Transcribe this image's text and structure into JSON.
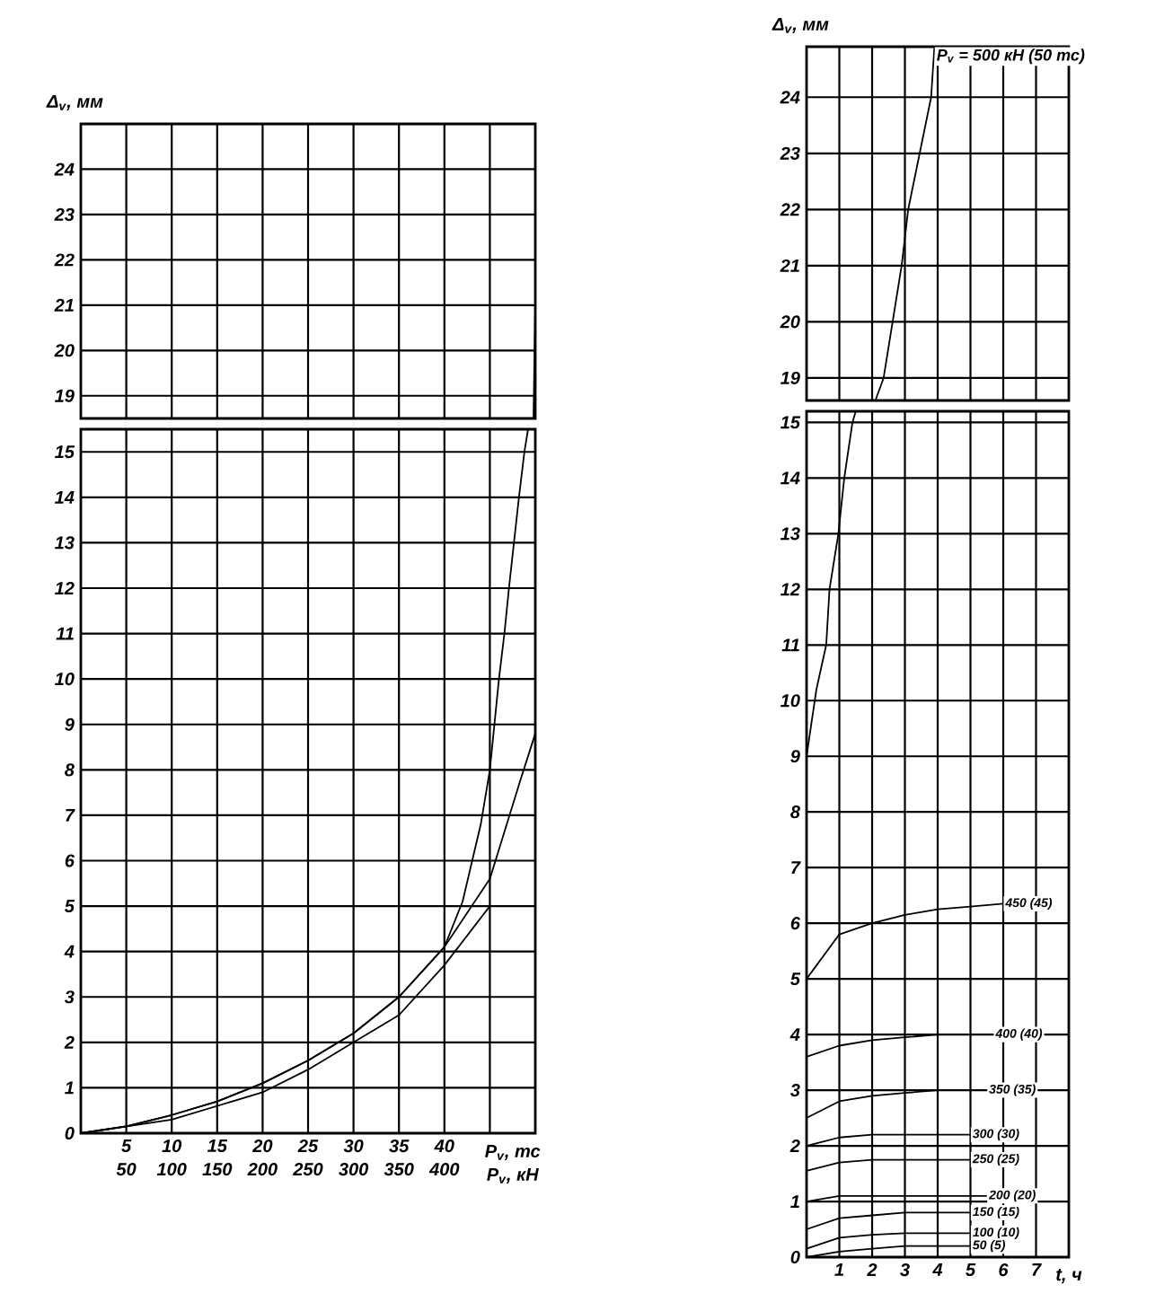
{
  "chart_data": [
    {
      "type": "line",
      "ylabel": "Δ$_{v}$, мм",
      "xlim": [
        0,
        50
      ],
      "ylim": [
        18.5,
        25
      ],
      "xticks": [
        5,
        10,
        15,
        20,
        25,
        30,
        35,
        40,
        {
          "value": 45,
          "label": null
        }
      ],
      "yticks": [
        19,
        20,
        21,
        22,
        23,
        24
      ],
      "tick_labels": "y",
      "grid": true,
      "marker": "none",
      "line_style": "solid",
      "series": [
        {
          "color": "#000000",
          "x": [
            49.8,
            50
          ],
          "values": [
            18.5,
            21
          ]
        }
      ]
    },
    {
      "type": "line",
      "xlabel": "P$_{v}$, тс",
      "x2label": "P$_{v}$, кН",
      "xlim": [
        0,
        50
      ],
      "ylim": [
        0,
        15.5
      ],
      "xticks": [
        5,
        10,
        15,
        20,
        25,
        30,
        35,
        40,
        {
          "value": 45,
          "label": null
        }
      ],
      "x2lim": [
        0,
        500
      ],
      "x2ticks": [
        50,
        100,
        150,
        200,
        250,
        300,
        350,
        400
      ],
      "yticks": [
        0,
        1,
        2,
        3,
        4,
        5,
        6,
        7,
        8,
        9,
        10,
        11,
        12,
        13,
        14,
        15
      ],
      "grid": true,
      "marker": "none",
      "line_style": "solid",
      "series": [
        {
          "color": "#000000",
          "x": [
            0,
            5,
            10,
            15,
            20,
            25,
            30,
            35,
            40,
            42,
            44,
            45,
            46,
            46.6,
            47.1,
            48.2,
            48.8,
            49.2
          ],
          "values": [
            0,
            0.15,
            0.4,
            0.7,
            1.1,
            1.6,
            2.2,
            3.0,
            4.1,
            5.1,
            6.8,
            8.0,
            10,
            11,
            12,
            14,
            15,
            15.5
          ]
        },
        {
          "color": "#000000",
          "x": [
            0,
            5,
            10,
            15,
            20,
            25,
            30,
            35,
            40,
            45,
            48.4,
            50
          ],
          "values": [
            0,
            0.15,
            0.4,
            0.7,
            1.1,
            1.6,
            2.2,
            3.0,
            4.1,
            5.6,
            7.8,
            8.8
          ]
        },
        {
          "color": "#000000",
          "x": [
            0,
            10,
            20,
            25,
            30,
            35,
            40,
            45
          ],
          "values": [
            0,
            0.3,
            0.9,
            1.4,
            2.0,
            2.6,
            3.7,
            5.0
          ]
        }
      ]
    },
    {
      "type": "line",
      "ylabel": "Δ$_{v}$, мм",
      "xlim": [
        0,
        8
      ],
      "ylim": [
        18.6,
        24.9
      ],
      "xticks": [
        1,
        2,
        3,
        4,
        5,
        6,
        7
      ],
      "yticks": [
        19,
        20,
        21,
        22,
        23,
        24
      ],
      "tick_labels": "y",
      "grid": true,
      "marker": "none",
      "line_style": "solid",
      "series": [
        {
          "name": "P$_{v}$ = 500 кН (50 тс)",
          "color": "#000000",
          "x": [
            2.1,
            2.35,
            2.9,
            3.1,
            3.8,
            3.9
          ],
          "values": [
            18.6,
            19,
            21,
            22,
            24,
            24.9
          ]
        }
      ]
    },
    {
      "type": "line",
      "xlabel": "t, ч",
      "xlim": [
        0,
        8
      ],
      "ylim": [
        0,
        15.2
      ],
      "xticks": [
        1,
        2,
        3,
        4,
        5,
        6,
        7
      ],
      "yticks": [
        0,
        1,
        2,
        3,
        4,
        5,
        6,
        7,
        8,
        9,
        10,
        11,
        12,
        13,
        14,
        15
      ],
      "grid": true,
      "marker": "none",
      "line_style": "solid",
      "series": [
        {
          "color": "#000000",
          "x": [
            0,
            0.3,
            0.6,
            0.7,
            0.97,
            1.15,
            1.4,
            1.5
          ],
          "values": [
            9,
            10.2,
            11,
            12,
            13,
            14,
            15,
            15.2
          ]
        },
        {
          "name": "450 (45)",
          "color": "#000000",
          "x": [
            0,
            1,
            2,
            3,
            4,
            5,
            6
          ],
          "values": [
            5.0,
            5.8,
            6.0,
            6.15,
            6.25,
            6.3,
            6.35
          ]
        },
        {
          "name": "400 (40)",
          "color": "#000000",
          "x": [
            0,
            1,
            2,
            3,
            4,
            5,
            5.7
          ],
          "values": [
            3.6,
            3.8,
            3.9,
            3.95,
            4.0,
            4.0,
            4.0
          ]
        },
        {
          "name": "350 (35)",
          "color": "#000000",
          "x": [
            0,
            1,
            2,
            3,
            4,
            5,
            5.5
          ],
          "values": [
            2.5,
            2.8,
            2.9,
            2.95,
            3.0,
            3.0,
            3.0
          ]
        },
        {
          "name": "300 (30)",
          "color": "#000000",
          "x": [
            0,
            1,
            2,
            3,
            4,
            5
          ],
          "values": [
            2.0,
            2.15,
            2.2,
            2.2,
            2.2,
            2.2
          ]
        },
        {
          "name": "250 (25)",
          "color": "#000000",
          "x": [
            0,
            1,
            2,
            3,
            4,
            5
          ],
          "values": [
            1.55,
            1.7,
            1.75,
            1.75,
            1.75,
            1.75
          ]
        },
        {
          "name": "200 (20)",
          "color": "#000000",
          "x": [
            0,
            1,
            2,
            3,
            4,
            5,
            5.5
          ],
          "values": [
            1.0,
            1.1,
            1.1,
            1.1,
            1.1,
            1.1,
            1.1
          ]
        },
        {
          "name": "150 (15)",
          "color": "#000000",
          "x": [
            0,
            1,
            2,
            3,
            4,
            5
          ],
          "values": [
            0.5,
            0.7,
            0.75,
            0.8,
            0.8,
            0.8
          ]
        },
        {
          "name": "100 (10)",
          "color": "#000000",
          "x": [
            0,
            1,
            2,
            3,
            4,
            5
          ],
          "values": [
            0.15,
            0.35,
            0.4,
            0.43,
            0.43,
            0.43
          ]
        },
        {
          "name": "50 (5)",
          "color": "#000000",
          "x": [
            0,
            1,
            2,
            3,
            4,
            5
          ],
          "values": [
            0.0,
            0.1,
            0.15,
            0.2,
            0.2,
            0.2
          ]
        }
      ]
    }
  ]
}
